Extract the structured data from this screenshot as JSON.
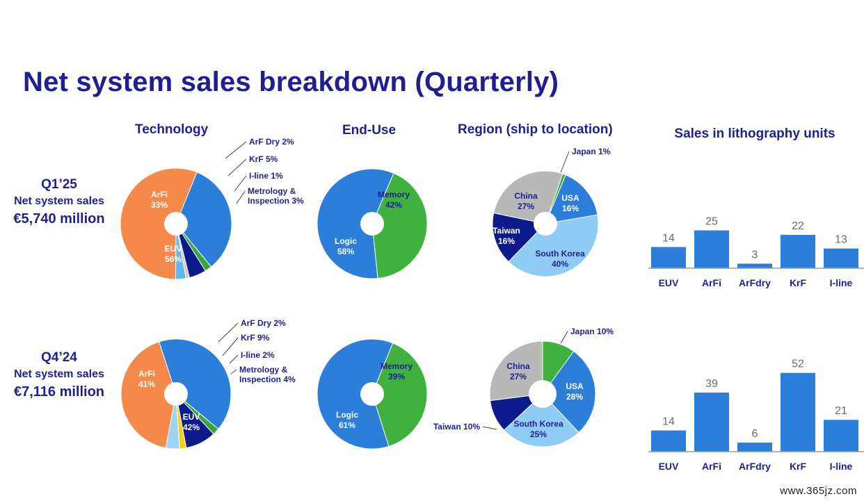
{
  "title": "Net system sales breakdown (Quarterly)",
  "columns": {
    "technology": "Technology",
    "end_use": "End-Use",
    "region": "Region (ship to location)",
    "units": "Sales in lithography units"
  },
  "quarters": [
    {
      "name": "Q1’25",
      "label": "Net system sales",
      "amount": "€5,740 million"
    },
    {
      "name": "Q4’24",
      "label": "Net system sales",
      "amount": "€7,116 million"
    }
  ],
  "watermark": "www.365jz.com",
  "chart_data": [
    {
      "type": "pie",
      "id": "tech-q1",
      "title": "Technology",
      "slices": [
        {
          "name": "ArFi",
          "value": 33,
          "label": "33%",
          "color": "#2b7fd8"
        },
        {
          "name": "ArF Dry",
          "value": 2,
          "label": "2%",
          "color": "#3aa63a"
        },
        {
          "name": "KrF",
          "value": 5,
          "label": "5%",
          "color": "#0d1a8c"
        },
        {
          "name": "I-line",
          "value": 1,
          "label": "1%",
          "color": "#e3c5b1"
        },
        {
          "name": "Metrology & Inspection",
          "value": 3,
          "label": "3%",
          "color": "#62b8ee"
        },
        {
          "name": "EUV",
          "value": 56,
          "label": "56%",
          "color": "#f4894a"
        }
      ]
    },
    {
      "type": "pie",
      "id": "enduse-q1",
      "title": "End-Use",
      "slices": [
        {
          "name": "Memory",
          "value": 42,
          "label": "42%",
          "color": "#3fb13f"
        },
        {
          "name": "Logic",
          "value": 58,
          "label": "58%",
          "color": "#2b7fd8"
        }
      ]
    },
    {
      "type": "pie",
      "id": "region-q1",
      "title": "Region (ship to location)",
      "slices": [
        {
          "name": "Japan",
          "value": 1,
          "label": "1%",
          "color": "#3fb13f"
        },
        {
          "name": "USA",
          "value": 16,
          "label": "16%",
          "color": "#2b7fd8"
        },
        {
          "name": "South Korea",
          "value": 40,
          "label": "40%",
          "color": "#8fccf5"
        },
        {
          "name": "Taiwan",
          "value": 16,
          "label": "16%",
          "color": "#0d1a8c"
        },
        {
          "name": "China",
          "value": 27,
          "label": "27%",
          "color": "#b8b8b8"
        }
      ]
    },
    {
      "type": "pie",
      "id": "tech-q4",
      "title": "Technology",
      "slices": [
        {
          "name": "ArFi",
          "value": 41,
          "label": "41%",
          "color": "#2b7fd8"
        },
        {
          "name": "ArF Dry",
          "value": 2,
          "label": "2%",
          "color": "#3aa63a"
        },
        {
          "name": "KrF",
          "value": 9,
          "label": "9%",
          "color": "#0d1a8c"
        },
        {
          "name": "I-line",
          "value": 2,
          "label": "2%",
          "color": "#f2d21b"
        },
        {
          "name": "Metrology & Inspection",
          "value": 4,
          "label": "4%",
          "color": "#9dd4f5"
        },
        {
          "name": "EUV",
          "value": 42,
          "label": "42%",
          "color": "#f4894a"
        }
      ]
    },
    {
      "type": "pie",
      "id": "enduse-q4",
      "title": "End-Use",
      "slices": [
        {
          "name": "Memory",
          "value": 39,
          "label": "39%",
          "color": "#3fb13f"
        },
        {
          "name": "Logic",
          "value": 61,
          "label": "61%",
          "color": "#2b7fd8"
        }
      ]
    },
    {
      "type": "pie",
      "id": "region-q4",
      "title": "Region (ship to location)",
      "slices": [
        {
          "name": "Japan",
          "value": 10,
          "label": "10%",
          "color": "#3fb13f"
        },
        {
          "name": "USA",
          "value": 28,
          "label": "28%",
          "color": "#2b7fd8"
        },
        {
          "name": "South Korea",
          "value": 25,
          "label": "25%",
          "color": "#8fccf5"
        },
        {
          "name": "Taiwan",
          "value": 10,
          "label": "10%",
          "color": "#0d1a8c"
        },
        {
          "name": "China",
          "value": 27,
          "label": "27%",
          "color": "#b8b8b8"
        }
      ]
    },
    {
      "type": "bar",
      "id": "units-q1",
      "title": "Sales in lithography units",
      "categories": [
        "EUV",
        "ArFi",
        "ArFdry",
        "KrF",
        "I-line"
      ],
      "values": [
        14,
        25,
        3,
        22,
        13
      ],
      "color": "#2b7fd8"
    },
    {
      "type": "bar",
      "id": "units-q4",
      "title": "Sales in lithography units",
      "categories": [
        "EUV",
        "ArFi",
        "ArFdry",
        "KrF",
        "I-line"
      ],
      "values": [
        14,
        39,
        6,
        52,
        21
      ],
      "color": "#2b7fd8"
    }
  ]
}
